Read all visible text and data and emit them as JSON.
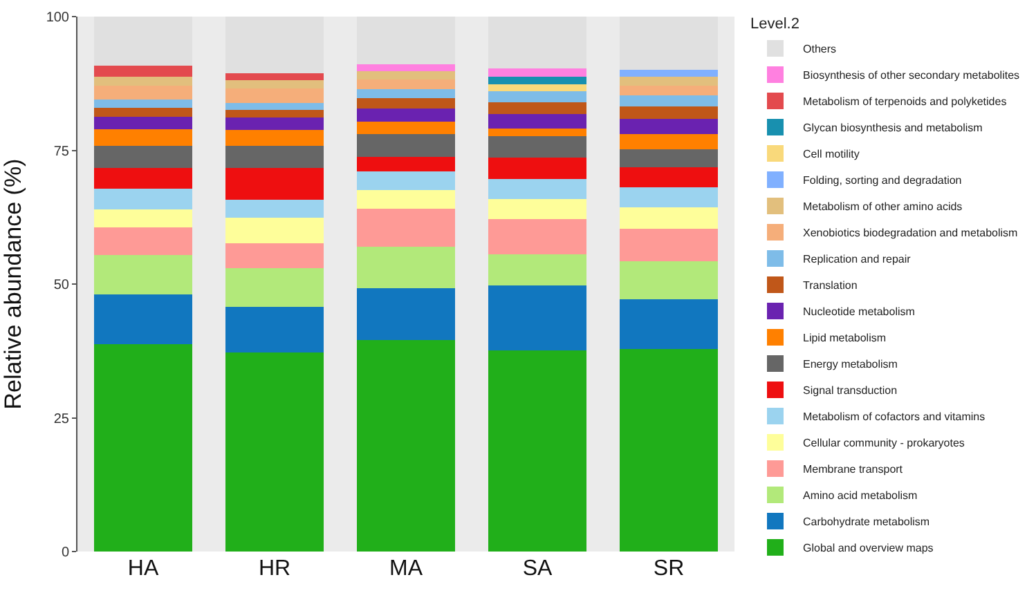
{
  "chart_data": {
    "type": "bar",
    "stacked": true,
    "ylabel": "Relative abundance (%)",
    "legend_title": "Level.2",
    "legend": "right",
    "grid": false,
    "categories": [
      "HA",
      "HR",
      "MA",
      "SA",
      "SR"
    ],
    "ylim": [
      0,
      100
    ],
    "yticks": [
      0,
      25,
      50,
      75,
      100
    ],
    "series": [
      {
        "name": "Global and overview maps",
        "color": "#21af1a",
        "values": [
          38.7,
          37.2,
          39.6,
          37.6,
          37.9
        ]
      },
      {
        "name": "Carbohydrate metabolism",
        "color": "#1177bf",
        "values": [
          9.3,
          8.6,
          9.6,
          12.1,
          9.3
        ]
      },
      {
        "name": "Amino acid metabolism",
        "color": "#b2e97a",
        "values": [
          7.4,
          7.2,
          7.8,
          5.9,
          7.1
        ]
      },
      {
        "name": "Membrane transport",
        "color": "#fe9a96",
        "values": [
          5.2,
          4.6,
          7.1,
          6.5,
          6.1
        ]
      },
      {
        "name": "Cellular community - prokaryotes",
        "color": "#fefe9a",
        "values": [
          3.4,
          4.8,
          3.5,
          3.8,
          4.0
        ]
      },
      {
        "name": "Metabolism of cofactors and vitamins",
        "color": "#9bd3ef",
        "values": [
          3.8,
          3.4,
          3.5,
          3.7,
          3.7
        ]
      },
      {
        "name": "Signal transduction",
        "color": "#ee0f10",
        "values": [
          3.9,
          5.9,
          2.7,
          4.0,
          3.7
        ]
      },
      {
        "name": "Energy metabolism",
        "color": "#666666",
        "values": [
          4.1,
          4.2,
          4.3,
          4.1,
          3.4
        ]
      },
      {
        "name": "Lipid metabolism",
        "color": "#ff8000",
        "values": [
          3.2,
          2.9,
          2.3,
          1.4,
          2.8
        ]
      },
      {
        "name": "Nucleotide metabolism",
        "color": "#6a22b0",
        "values": [
          2.3,
          2.3,
          2.4,
          2.7,
          2.9
        ]
      },
      {
        "name": "Translation",
        "color": "#c05719",
        "values": [
          1.6,
          1.5,
          2.0,
          2.2,
          2.3
        ]
      },
      {
        "name": "Replication and repair",
        "color": "#7ebce8",
        "values": [
          1.6,
          1.3,
          1.6,
          2.1,
          2.1
        ]
      },
      {
        "name": "Xenobiotics biodegradation and metabolism",
        "color": "#f5ae7a",
        "values": [
          2.6,
          2.6,
          1.9,
          0,
          1.8
        ]
      },
      {
        "name": "Metabolism of other amino acids",
        "color": "#e2bf7d",
        "values": [
          1.6,
          1.6,
          1.5,
          0,
          1.7
        ]
      },
      {
        "name": "Folding, sorting and degradation",
        "color": "#80b0ff",
        "values": [
          0,
          0,
          0,
          0,
          1.3
        ]
      },
      {
        "name": "Cell motility",
        "color": "#f9d97b",
        "values": [
          0,
          0,
          0,
          1.3,
          0
        ]
      },
      {
        "name": "Glycan biosynthesis and metabolism",
        "color": "#1890af",
        "values": [
          0,
          0,
          0,
          1.3,
          0
        ]
      },
      {
        "name": "Metabolism of terpenoids and polyketides",
        "color": "#e34a4e",
        "values": [
          2.1,
          1.3,
          0,
          0,
          0
        ]
      },
      {
        "name": "Biosynthesis of other secondary metabolites",
        "color": "#ff80e0",
        "values": [
          0,
          0,
          1.3,
          1.6,
          0
        ]
      },
      {
        "name": "Others",
        "color": "#e0e0e0",
        "values": [
          9.2,
          10.6,
          8.9,
          9.7,
          9.9
        ]
      }
    ]
  }
}
